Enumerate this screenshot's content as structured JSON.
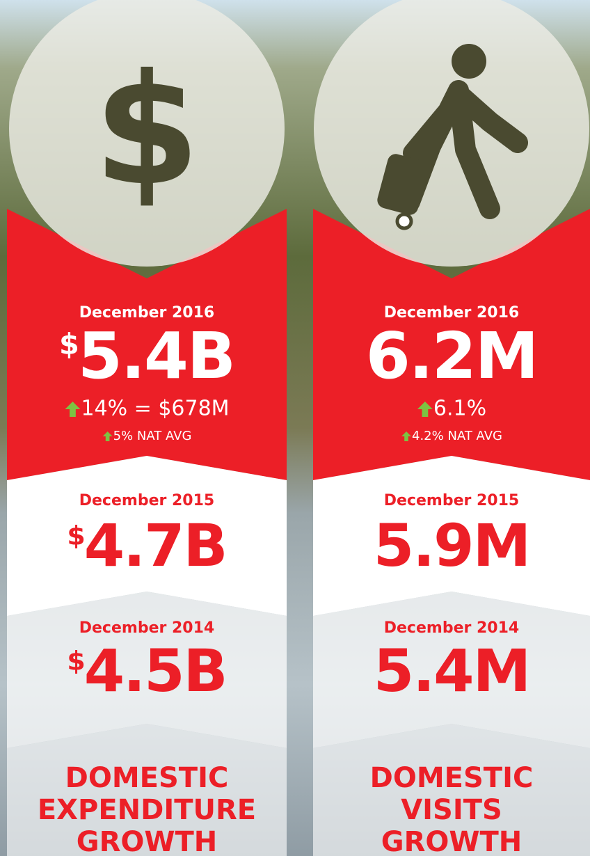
{
  "columns": [
    {
      "icon_symbol": "$",
      "current": {
        "label": "December 2016",
        "prefix": "$",
        "value": "5.4B",
        "change": "14% = $678M",
        "national": "5% NAT AVG"
      },
      "previous": [
        {
          "label": "December 2015",
          "prefix": "$",
          "value": "4.7B"
        },
        {
          "label": "December 2014",
          "prefix": "$",
          "value": "4.5B"
        }
      ],
      "title": [
        "DOMESTIC",
        "EXPENDITURE",
        "GROWTH"
      ]
    },
    {
      "current": {
        "label": "December 2016",
        "value": "6.2M",
        "change": "6.1%",
        "national": "4.2% NAT AVG"
      },
      "previous": [
        {
          "label": "December 2015",
          "value": "5.9M"
        },
        {
          "label": "December 2014",
          "value": "5.4M"
        }
      ],
      "title": [
        "DOMESTIC",
        "VISITS",
        "GROWTH"
      ]
    }
  ]
}
